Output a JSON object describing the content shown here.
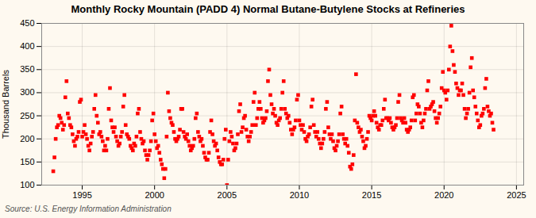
{
  "chart_data": {
    "type": "scatter",
    "title": "Monthly Rocky Mountain (PADD 4) Normal Butane-Butylene Stocks at Refineries",
    "ylabel": "Thousand Barrels",
    "caption": "Source: U.S. Energy Information Administration",
    "color": "#ff0000",
    "marker": "square",
    "grid": true,
    "xlim": [
      1992.2,
      2025.5
    ],
    "ylim": [
      100,
      450
    ],
    "xticks": [
      1995,
      2000,
      2005,
      2010,
      2015,
      2020,
      2025
    ],
    "yticks": [
      100,
      150,
      200,
      250,
      300,
      350,
      400,
      450
    ],
    "x": [
      1993.0,
      1993.083,
      1993.167,
      1993.25,
      1993.333,
      1993.417,
      1993.5,
      1993.583,
      1993.667,
      1993.75,
      1993.833,
      1993.917,
      1994.0,
      1994.083,
      1994.167,
      1994.25,
      1994.333,
      1994.417,
      1994.5,
      1994.583,
      1994.667,
      1994.75,
      1994.833,
      1994.917,
      1995.0,
      1995.083,
      1995.167,
      1995.25,
      1995.333,
      1995.417,
      1995.5,
      1995.583,
      1995.667,
      1995.75,
      1995.833,
      1995.917,
      1996.0,
      1996.083,
      1996.167,
      1996.25,
      1996.333,
      1996.417,
      1996.5,
      1996.583,
      1996.667,
      1996.75,
      1996.833,
      1996.917,
      1997.0,
      1997.083,
      1997.167,
      1997.25,
      1997.333,
      1997.417,
      1997.5,
      1997.583,
      1997.667,
      1997.75,
      1997.833,
      1997.917,
      1998.0,
      1998.083,
      1998.167,
      1998.25,
      1998.333,
      1998.417,
      1998.5,
      1998.583,
      1998.667,
      1998.75,
      1998.833,
      1998.917,
      1999.0,
      1999.083,
      1999.167,
      1999.25,
      1999.333,
      1999.417,
      1999.5,
      1999.583,
      1999.667,
      1999.75,
      1999.833,
      1999.917,
      2000.0,
      2000.083,
      2000.167,
      2000.25,
      2000.333,
      2000.417,
      2000.5,
      2000.583,
      2000.667,
      2000.75,
      2000.833,
      2000.917,
      2001.0,
      2001.083,
      2001.167,
      2001.25,
      2001.333,
      2001.417,
      2001.5,
      2001.583,
      2001.667,
      2001.75,
      2001.833,
      2001.917,
      2002.0,
      2002.083,
      2002.167,
      2002.25,
      2002.333,
      2002.417,
      2002.5,
      2002.583,
      2002.667,
      2002.75,
      2002.833,
      2002.917,
      2003.0,
      2003.083,
      2003.167,
      2003.25,
      2003.333,
      2003.417,
      2003.5,
      2003.583,
      2003.667,
      2003.75,
      2003.833,
      2003.917,
      2004.0,
      2004.083,
      2004.167,
      2004.25,
      2004.333,
      2004.417,
      2004.5,
      2004.583,
      2004.667,
      2004.75,
      2004.833,
      2004.917,
      2005.0,
      2005.083,
      2005.167,
      2005.25,
      2005.333,
      2005.417,
      2005.5,
      2005.583,
      2005.667,
      2005.75,
      2005.833,
      2005.917,
      2006.0,
      2006.083,
      2006.167,
      2006.25,
      2006.333,
      2006.417,
      2006.5,
      2006.583,
      2006.667,
      2006.75,
      2006.833,
      2006.917,
      2007.0,
      2007.083,
      2007.167,
      2007.25,
      2007.333,
      2007.417,
      2007.5,
      2007.583,
      2007.667,
      2007.75,
      2007.833,
      2007.917,
      2008.0,
      2008.083,
      2008.167,
      2008.25,
      2008.333,
      2008.417,
      2008.5,
      2008.583,
      2008.667,
      2008.75,
      2008.833,
      2008.917,
      2009.0,
      2009.083,
      2009.167,
      2009.25,
      2009.333,
      2009.417,
      2009.5,
      2009.583,
      2009.667,
      2009.75,
      2009.833,
      2009.917,
      2010.0,
      2010.083,
      2010.167,
      2010.25,
      2010.333,
      2010.417,
      2010.5,
      2010.583,
      2010.667,
      2010.75,
      2010.833,
      2010.917,
      2011.0,
      2011.083,
      2011.167,
      2011.25,
      2011.333,
      2011.417,
      2011.5,
      2011.583,
      2011.667,
      2011.75,
      2011.833,
      2011.917,
      2012.0,
      2012.083,
      2012.167,
      2012.25,
      2012.333,
      2012.417,
      2012.5,
      2012.583,
      2012.667,
      2012.75,
      2012.833,
      2012.917,
      2013.0,
      2013.083,
      2013.167,
      2013.25,
      2013.333,
      2013.417,
      2013.5,
      2013.583,
      2013.667,
      2013.75,
      2013.833,
      2013.917,
      2014.0,
      2014.083,
      2014.167,
      2014.25,
      2014.333,
      2014.417,
      2014.5,
      2014.583,
      2014.667,
      2014.75,
      2014.833,
      2014.917,
      2015.0,
      2015.083,
      2015.167,
      2015.25,
      2015.333,
      2015.417,
      2015.5,
      2015.583,
      2015.667,
      2015.75,
      2015.833,
      2015.917,
      2016.0,
      2016.083,
      2016.167,
      2016.25,
      2016.333,
      2016.417,
      2016.5,
      2016.583,
      2016.667,
      2016.75,
      2016.833,
      2016.917,
      2017.0,
      2017.083,
      2017.167,
      2017.25,
      2017.333,
      2017.417,
      2017.5,
      2017.583,
      2017.667,
      2017.75,
      2017.833,
      2017.917,
      2018.0,
      2018.083,
      2018.167,
      2018.25,
      2018.333,
      2018.417,
      2018.5,
      2018.583,
      2018.667,
      2018.75,
      2018.833,
      2018.917,
      2019.0,
      2019.083,
      2019.167,
      2019.25,
      2019.333,
      2019.417,
      2019.5,
      2019.583,
      2019.667,
      2019.75,
      2019.833,
      2019.917,
      2020.0,
      2020.083,
      2020.167,
      2020.25,
      2020.333,
      2020.417,
      2020.5,
      2020.583,
      2020.667,
      2020.75,
      2020.833,
      2020.917,
      2021.0,
      2021.083,
      2021.167,
      2021.25,
      2021.333,
      2021.417,
      2021.5,
      2021.583,
      2021.667,
      2021.75,
      2021.833,
      2021.917,
      2022.0,
      2022.083,
      2022.167,
      2022.25,
      2022.333,
      2022.417,
      2022.5,
      2022.583,
      2022.667,
      2022.75,
      2022.833,
      2022.917,
      2023.0,
      2023.083,
      2023.167,
      2023.25,
      2023.333,
      2023.417
    ],
    "values": [
      130,
      160,
      200,
      225,
      230,
      250,
      245,
      235,
      220,
      230,
      290,
      325,
      255,
      245,
      230,
      225,
      210,
      195,
      185,
      200,
      205,
      215,
      280,
      285,
      205,
      215,
      230,
      210,
      200,
      185,
      175,
      190,
      205,
      215,
      265,
      295,
      250,
      235,
      210,
      215,
      205,
      195,
      175,
      185,
      175,
      200,
      265,
      310,
      240,
      225,
      215,
      225,
      205,
      195,
      185,
      190,
      205,
      215,
      270,
      295,
      230,
      210,
      205,
      200,
      185,
      180,
      175,
      190,
      185,
      205,
      255,
      265,
      215,
      200,
      190,
      195,
      175,
      165,
      155,
      165,
      175,
      195,
      240,
      255,
      210,
      195,
      180,
      185,
      170,
      155,
      145,
      135,
      115,
      135,
      205,
      300,
      260,
      245,
      235,
      230,
      215,
      200,
      195,
      200,
      205,
      220,
      265,
      265,
      215,
      205,
      200,
      210,
      195,
      185,
      175,
      180,
      185,
      200,
      245,
      255,
      215,
      205,
      195,
      200,
      185,
      170,
      160,
      155,
      155,
      170,
      215,
      240,
      210,
      195,
      185,
      190,
      175,
      160,
      150,
      145,
      145,
      155,
      200,
      220,
      100,
      155,
      195,
      215,
      205,
      190,
      175,
      180,
      190,
      210,
      260,
      275,
      215,
      225,
      245,
      250,
      220,
      205,
      195,
      205,
      215,
      230,
      280,
      300,
      230,
      245,
      265,
      280,
      265,
      245,
      235,
      240,
      245,
      260,
      325,
      350,
      295,
      275,
      255,
      265,
      250,
      235,
      230,
      240,
      245,
      265,
      300,
      325,
      265,
      255,
      245,
      250,
      235,
      220,
      210,
      220,
      225,
      240,
      285,
      295,
      240,
      230,
      220,
      230,
      215,
      200,
      195,
      205,
      210,
      225,
      270,
      285,
      230,
      215,
      205,
      215,
      200,
      190,
      180,
      190,
      200,
      215,
      265,
      280,
      225,
      210,
      200,
      210,
      195,
      180,
      175,
      185,
      195,
      210,
      255,
      270,
      210,
      200,
      190,
      200,
      185,
      170,
      140,
      135,
      145,
      165,
      240,
      340,
      235,
      225,
      215,
      220,
      205,
      195,
      180,
      185,
      200,
      215,
      250,
      245,
      240,
      250,
      260,
      250,
      235,
      225,
      220,
      230,
      230,
      240,
      265,
      285,
      245,
      245,
      240,
      245,
      235,
      225,
      220,
      225,
      230,
      245,
      280,
      295,
      245,
      240,
      235,
      245,
      235,
      220,
      215,
      220,
      225,
      240,
      290,
      295,
      240,
      255,
      275,
      270,
      255,
      235,
      225,
      240,
      255,
      265,
      305,
      325,
      265,
      270,
      275,
      280,
      260,
      245,
      235,
      245,
      255,
      270,
      310,
      345,
      305,
      300,
      285,
      305,
      350,
      400,
      445,
      390,
      360,
      345,
      320,
      310,
      295,
      305,
      305,
      320,
      295,
      265,
      245,
      255,
      265,
      300,
      355,
      375,
      305,
      290,
      270,
      255,
      240,
      225,
      230,
      250,
      255,
      265,
      310,
      330,
      270,
      260,
      250,
      255,
      235,
      220
    ]
  }
}
